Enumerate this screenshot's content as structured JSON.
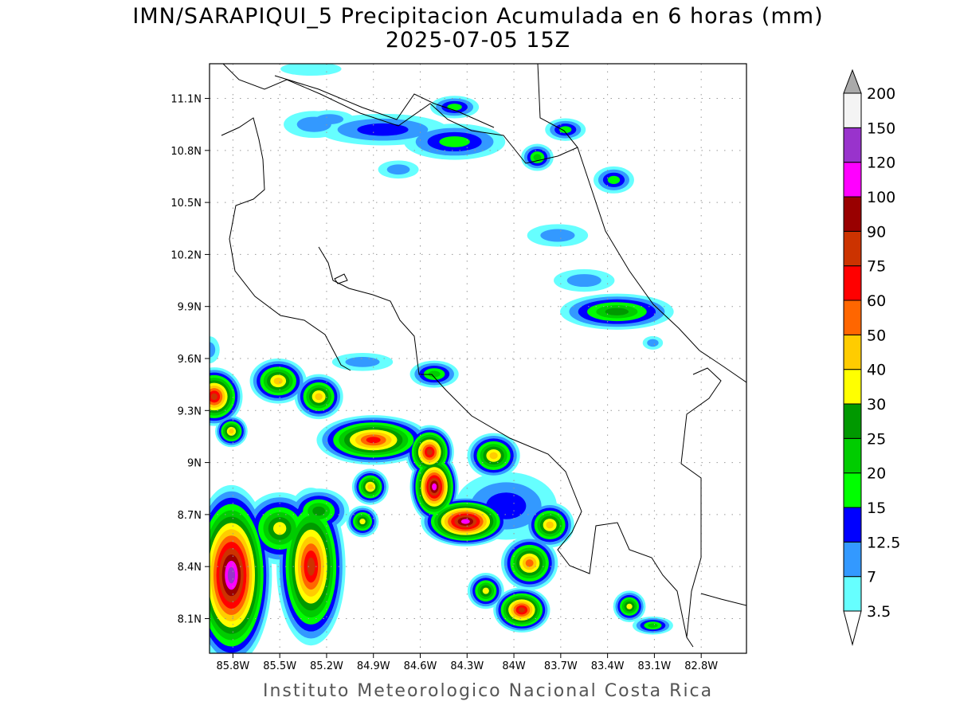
{
  "title": "IMN/SARAPIQUI_5 Precipitacion Acumulada en 6 horas (mm)",
  "subtitle": "2025-07-05 15Z",
  "footer": "Instituto Meteorologico Nacional Costa Rica",
  "chart_data": {
    "type": "heatmap",
    "lon_range": [
      -85.95,
      -82.51
    ],
    "lat_range": [
      7.9,
      11.3
    ],
    "grid": true,
    "x_ticks": [
      "85.8W",
      "85.5W",
      "85.2W",
      "84.9W",
      "84.6W",
      "84.3W",
      "84W",
      "83.7W",
      "83.4W",
      "83.1W",
      "82.8W"
    ],
    "y_ticks": [
      "8.1N",
      "8.4N",
      "8.7N",
      "9N",
      "9.3N",
      "9.6N",
      "9.9N",
      "10.2N",
      "10.5N",
      "10.8N",
      "11.1N"
    ],
    "colorbar": {
      "placement": "right",
      "levels": [
        "3.5",
        "7",
        "12.5",
        "15",
        "20",
        "25",
        "30",
        "40",
        "50",
        "60",
        "75",
        "90",
        "100",
        "120",
        "150",
        "200"
      ],
      "values": [
        3.5,
        7,
        12.5,
        15,
        20,
        25,
        30,
        40,
        50,
        60,
        75,
        90,
        100,
        120,
        150,
        200
      ],
      "colors": [
        "#66ffff",
        "#3399ff",
        "#0000ff",
        "#00ff00",
        "#00cc00",
        "#009900",
        "#ffff00",
        "#ffcc00",
        "#ff6600",
        "#ff0000",
        "#cc3300",
        "#990000",
        "#ff00ff",
        "#9933cc",
        "#f4f4f4"
      ],
      "over_color": "#aaaaaa",
      "under_color": "#ffffff"
    },
    "cells": [
      {
        "lon": -85.92,
        "lat": 9.38,
        "rx": 0.14,
        "ry": 0.13,
        "peak": 75
      },
      {
        "lon": -85.51,
        "lat": 9.47,
        "rx": 0.14,
        "ry": 0.1,
        "peak": 40
      },
      {
        "lon": -85.25,
        "lat": 9.38,
        "rx": 0.12,
        "ry": 0.1,
        "peak": 40
      },
      {
        "lon": -85.81,
        "lat": 9.18,
        "rx": 0.08,
        "ry": 0.07,
        "peak": 40
      },
      {
        "lon": -84.9,
        "lat": 9.13,
        "rx": 0.28,
        "ry": 0.11,
        "peak": 60
      },
      {
        "lon": -84.54,
        "lat": 9.06,
        "rx": 0.12,
        "ry": 0.12,
        "peak": 75
      },
      {
        "lon": -84.51,
        "lat": 8.86,
        "rx": 0.12,
        "ry": 0.16,
        "peak": 100
      },
      {
        "lon": -84.31,
        "lat": 8.66,
        "rx": 0.22,
        "ry": 0.11,
        "peak": 100
      },
      {
        "lon": -84.13,
        "lat": 9.04,
        "rx": 0.13,
        "ry": 0.1,
        "peak": 40
      },
      {
        "lon": -84.92,
        "lat": 8.86,
        "rx": 0.09,
        "ry": 0.08,
        "peak": 40
      },
      {
        "lon": -84.97,
        "lat": 8.66,
        "rx": 0.08,
        "ry": 0.07,
        "peak": 30
      },
      {
        "lon": -83.77,
        "lat": 8.64,
        "rx": 0.12,
        "ry": 0.1,
        "peak": 40
      },
      {
        "lon": -83.9,
        "lat": 8.42,
        "rx": 0.14,
        "ry": 0.12,
        "peak": 50
      },
      {
        "lon": -83.95,
        "lat": 8.15,
        "rx": 0.14,
        "ry": 0.1,
        "peak": 75
      },
      {
        "lon": -84.18,
        "lat": 8.26,
        "rx": 0.09,
        "ry": 0.08,
        "peak": 30
      },
      {
        "lon": -85.81,
        "lat": 8.35,
        "rx": 0.2,
        "ry": 0.4,
        "peak": 120
      },
      {
        "lon": -85.3,
        "lat": 8.4,
        "rx": 0.17,
        "ry": 0.35,
        "peak": 75
      },
      {
        "lon": -85.5,
        "lat": 8.62,
        "rx": 0.18,
        "ry": 0.16,
        "peak": 30
      },
      {
        "lon": -85.25,
        "lat": 8.72,
        "rx": 0.15,
        "ry": 0.1,
        "peak": 25
      },
      {
        "lon": -83.26,
        "lat": 8.17,
        "rx": 0.08,
        "ry": 0.07,
        "peak": 30
      },
      {
        "lon": -83.11,
        "lat": 8.06,
        "rx": 0.1,
        "ry": 0.04,
        "peak": 20
      },
      {
        "lon": -83.34,
        "lat": 9.87,
        "rx": 0.28,
        "ry": 0.08,
        "peak": 25
      },
      {
        "lon": -83.36,
        "lat": 10.63,
        "rx": 0.1,
        "ry": 0.06,
        "peak": 15
      },
      {
        "lon": -83.85,
        "lat": 10.76,
        "rx": 0.08,
        "ry": 0.06,
        "peak": 20
      },
      {
        "lon": -84.38,
        "lat": 10.85,
        "rx": 0.25,
        "ry": 0.08,
        "peak": 15
      },
      {
        "lon": -84.38,
        "lat": 11.05,
        "rx": 0.12,
        "ry": 0.05,
        "peak": 15
      },
      {
        "lon": -84.84,
        "lat": 10.92,
        "rx": 0.32,
        "ry": 0.07,
        "peak": 12.5
      },
      {
        "lon": -85.28,
        "lat": 10.95,
        "rx": 0.15,
        "ry": 0.06,
        "peak": 7
      },
      {
        "lon": -83.67,
        "lat": 10.92,
        "rx": 0.1,
        "ry": 0.05,
        "peak": 15
      },
      {
        "lon": -84.51,
        "lat": 9.51,
        "rx": 0.12,
        "ry": 0.06,
        "peak": 20
      },
      {
        "lon": -83.72,
        "lat": 10.31,
        "rx": 0.15,
        "ry": 0.05,
        "peak": 7
      },
      {
        "lon": -84.74,
        "lat": 10.69,
        "rx": 0.1,
        "ry": 0.04,
        "peak": 7
      },
      {
        "lon": -85.18,
        "lat": 10.98,
        "rx": 0.12,
        "ry": 0.04,
        "peak": 7
      },
      {
        "lon": -85.3,
        "lat": 11.27,
        "rx": 0.15,
        "ry": 0.03,
        "peak": 3.5
      },
      {
        "lon": -83.11,
        "lat": 9.69,
        "rx": 0.05,
        "ry": 0.03,
        "peak": 7
      },
      {
        "lon": -84.97,
        "lat": 9.58,
        "rx": 0.15,
        "ry": 0.04,
        "peak": 7
      },
      {
        "lon": -83.55,
        "lat": 10.05,
        "rx": 0.15,
        "ry": 0.05,
        "peak": 7
      },
      {
        "lon": -85.95,
        "lat": 9.65,
        "rx": 0.05,
        "ry": 0.06,
        "peak": 7
      },
      {
        "lon": -84.05,
        "lat": 8.75,
        "rx": 0.25,
        "ry": 0.15,
        "peak": 12.5
      }
    ]
  }
}
